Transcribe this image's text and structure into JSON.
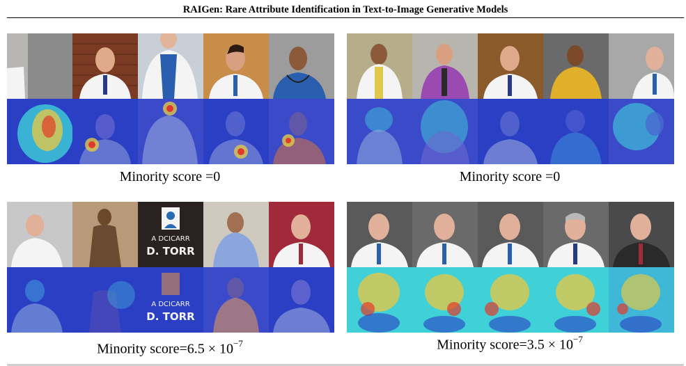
{
  "header": {
    "title": "RAIGen: Rare Attribute Identification in Text-to-Image Generative Models"
  },
  "panels": [
    {
      "caption": "Minority score =0"
    },
    {
      "caption": "Minority score =0"
    },
    {
      "caption_prefix": "Minority score=6.5 × 10",
      "caption_exp": "−7"
    },
    {
      "caption_prefix": "Minority score=3.5 × 10",
      "caption_exp": "−7"
    }
  ],
  "poster_text": {
    "line1": "A DCICARR",
    "line2": "D. TORR"
  },
  "colors": {
    "heat_low": "#2a3fc4",
    "heat_mid": "#3fd0d8",
    "heat_high": "#e23a2a",
    "coat": "#f4f4f4",
    "scrubs": "#2a5fb0"
  }
}
